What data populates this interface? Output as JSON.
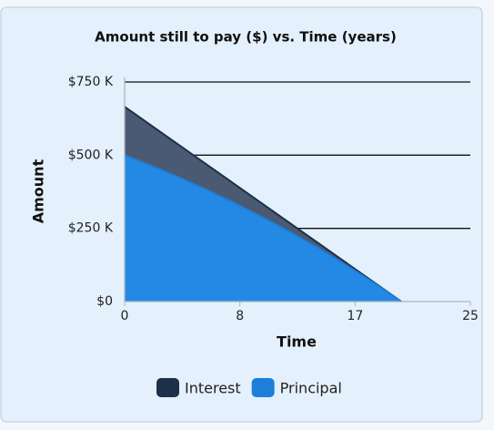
{
  "chart_data": {
    "type": "stacked-area",
    "title": "Amount still to pay ($) vs. Time (years)",
    "x_label": "Time",
    "y_label": "Amount",
    "x": [
      0,
      2,
      4,
      6,
      8,
      10,
      12,
      14,
      16,
      18,
      20
    ],
    "series": [
      {
        "name": "Interest",
        "color": "#1c3049",
        "fill": "#4a5a72",
        "values": [
          165500,
          136500,
          110000,
          85900,
          64300,
          45600,
          29800,
          17200,
          7800,
          2100,
          0
        ]
      },
      {
        "name": "Principal",
        "color": "#1e7fd8",
        "fill": "#2489e4",
        "values": [
          500000,
          462400,
          422400,
          380000,
          335000,
          287200,
          236400,
          182500,
          125300,
          64500,
          0
        ]
      }
    ],
    "xlim": [
      0,
      25
    ],
    "xticks": [
      0,
      {
        "value": 8.333,
        "label": "8"
      },
      {
        "value": 16.667,
        "label": "17"
      },
      25
    ],
    "ylim": [
      0,
      750000
    ],
    "yticks": [
      {
        "value": 0,
        "label": "$0"
      },
      {
        "value": 250000,
        "label": "$250 K"
      },
      {
        "value": 500000,
        "label": "$500 K"
      },
      {
        "value": 750000,
        "label": "$750 K"
      }
    ],
    "grid": true,
    "legend": "bottom"
  }
}
